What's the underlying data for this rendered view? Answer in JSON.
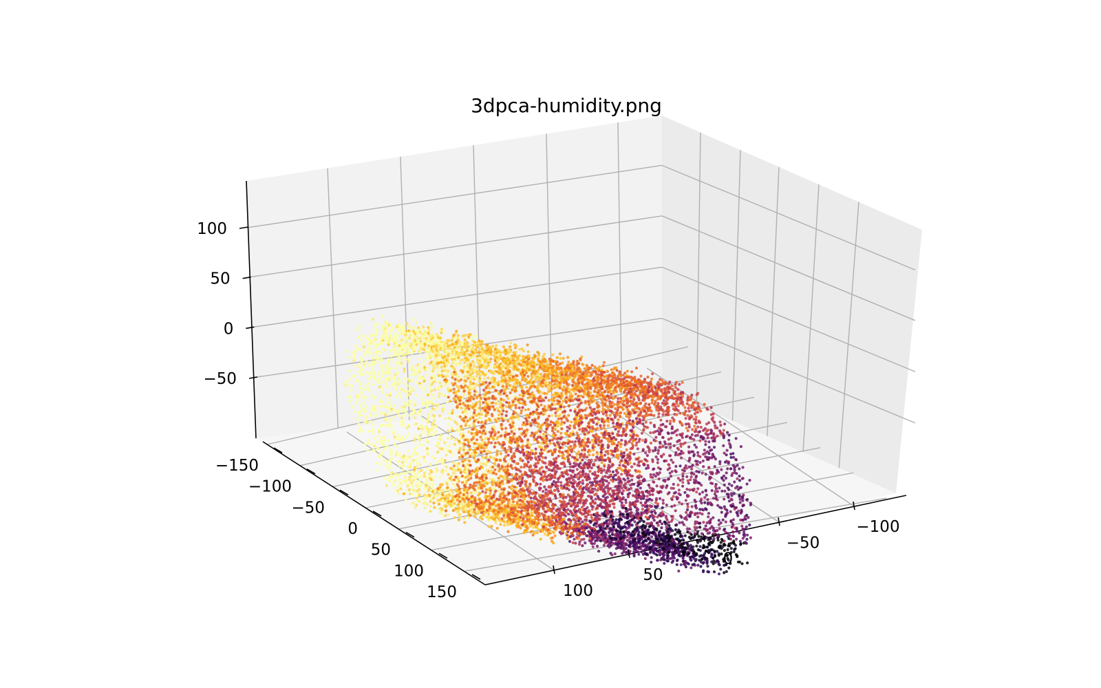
{
  "chart_data": {
    "type": "scatter",
    "dimensions": 3,
    "title": "3dpca-humidity.png",
    "xlabel": "",
    "ylabel": "",
    "zlabel": "",
    "colormap": "inferno",
    "color_stops": [
      "#000004",
      "#320a5e",
      "#781c6d",
      "#bc3754",
      "#ed6925",
      "#fbb61a",
      "#fcffa4"
    ],
    "color_meaning": "humidity",
    "grid": true,
    "legend": "none",
    "x_axis": {
      "range": [
        -130,
        165
      ],
      "ticks": [
        {
          "value": -150,
          "label": "−150"
        },
        {
          "value": -100,
          "label": "−100"
        },
        {
          "value": -50,
          "label": "−50"
        },
        {
          "value": 0,
          "label": "0"
        },
        {
          "value": 50,
          "label": "50"
        },
        {
          "value": 100,
          "label": "100"
        },
        {
          "value": 150,
          "label": "150"
        }
      ]
    },
    "y_axis": {
      "range": [
        -135,
        165
      ],
      "ticks": [
        {
          "value": -100,
          "label": "−100"
        },
        {
          "value": -50,
          "label": "−50"
        },
        {
          "value": 0,
          "label": "0"
        },
        {
          "value": 50,
          "label": "50"
        },
        {
          "value": 100,
          "label": "100"
        }
      ]
    },
    "z_axis": {
      "range": [
        -100,
        150
      ],
      "ticks": [
        {
          "value": -50,
          "label": "−50"
        },
        {
          "value": 0,
          "label": "0"
        },
        {
          "value": 50,
          "label": "50"
        },
        {
          "value": 100,
          "label": "100"
        }
      ]
    },
    "point_cloud": {
      "shape": "hollow cylinder (ring) whose axis runs along the y direction",
      "approx_points": 9000,
      "ring_center_x": 5,
      "ring_center_z": 30,
      "ring_radius": 85,
      "ring_thickness": 22,
      "y_extent": [
        -100,
        105
      ],
      "color_trend": "dark purple on the near/low side, shifting through red and orange to pale yellow on the far/upper side"
    }
  }
}
